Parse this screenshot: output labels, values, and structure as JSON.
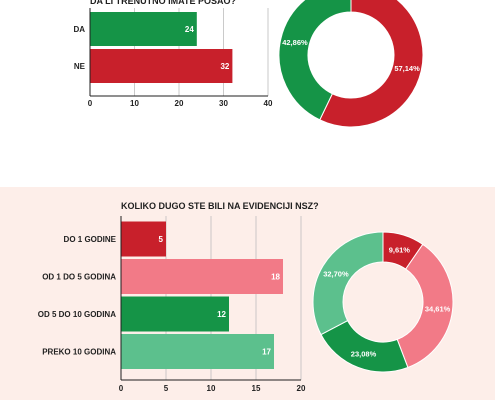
{
  "chart_data": [
    {
      "type": "bar",
      "title": "DA LI TRENUTNO IMATE POSAO?",
      "categories": [
        "DA",
        "NE"
      ],
      "values": [
        24,
        32
      ],
      "colors": [
        "#159447",
        "#c8202b"
      ],
      "xlim": [
        0,
        40
      ],
      "xticks": [
        0,
        10,
        20,
        30,
        40
      ],
      "grid": true
    },
    {
      "type": "pie",
      "labels": [
        "NE",
        "DA"
      ],
      "values": [
        57.14,
        42.86
      ],
      "value_labels": [
        "57,14%",
        "42,86%"
      ],
      "colors": [
        "#c8202b",
        "#159447"
      ],
      "donut": true
    },
    {
      "type": "bar",
      "title": "KOLIKO DUGO STE BILI NA EVIDENCIJI NSZ?",
      "categories": [
        "DO 1 GODINE",
        "OD 1 DO 5 GODINA",
        "OD 5 DO 10 GODINA",
        "PREKO 10 GODINA"
      ],
      "values": [
        5,
        18,
        12,
        17
      ],
      "colors": [
        "#c8202b",
        "#f27a87",
        "#159447",
        "#5cc08d"
      ],
      "xlim": [
        0,
        20
      ],
      "xticks": [
        0,
        5,
        10,
        15,
        20
      ],
      "grid": true
    },
    {
      "type": "pie",
      "labels": [
        "DO 1 GODINE",
        "OD 1 DO 5 GODINA",
        "OD 5 DO 10 GODINA",
        "PREKO 10 GODINA"
      ],
      "values": [
        9.61,
        34.61,
        23.08,
        32.7
      ],
      "value_labels": [
        "9,61%",
        "34,61%",
        "23,08%",
        "32,70%"
      ],
      "colors": [
        "#c8202b",
        "#f27a87",
        "#159447",
        "#5cc08d"
      ],
      "donut": true
    }
  ]
}
